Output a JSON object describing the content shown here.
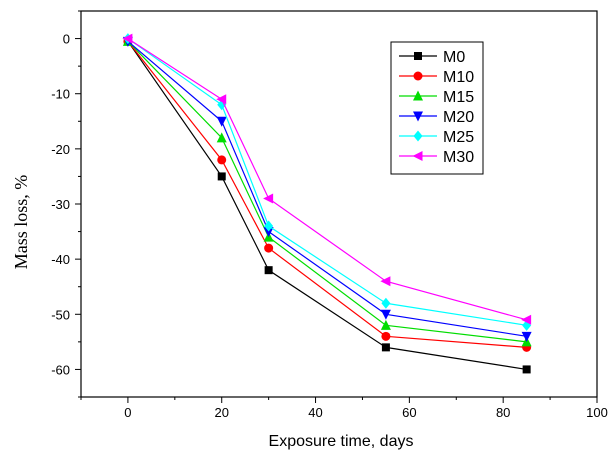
{
  "chart_data": {
    "type": "line",
    "title": "",
    "xlabel": "Exposure time, days",
    "ylabel": "Mass loss, %",
    "xlim": [
      -10,
      100
    ],
    "ylim": [
      -65,
      5
    ],
    "xticks": [
      0,
      20,
      40,
      60,
      80,
      100
    ],
    "yticks": [
      0,
      -10,
      -20,
      -30,
      -40,
      -50,
      -60
    ],
    "grid": false,
    "legend_position": "top-right",
    "x": [
      0,
      20,
      30,
      55,
      85
    ],
    "series": [
      {
        "name": "M0",
        "color": "#000000",
        "marker": "square",
        "values": [
          -0.5,
          -25,
          -42,
          -56,
          -60
        ]
      },
      {
        "name": "M10",
        "color": "#ff0000",
        "marker": "circle",
        "values": [
          -0.5,
          -22,
          -38,
          -54,
          -56
        ]
      },
      {
        "name": "M15",
        "color": "#00dd00",
        "marker": "triangle-up",
        "values": [
          -0.5,
          -18,
          -36,
          -52,
          -55
        ]
      },
      {
        "name": "M20",
        "color": "#0000ff",
        "marker": "triangle-down",
        "values": [
          -0.5,
          -15,
          -35,
          -50,
          -54
        ]
      },
      {
        "name": "M25",
        "color": "#00ffff",
        "marker": "diamond",
        "values": [
          0,
          -12,
          -34,
          -48,
          -52
        ]
      },
      {
        "name": "M30",
        "color": "#ff00ff",
        "marker": "triangle-left",
        "values": [
          0,
          -11,
          -29,
          -44,
          -51
        ]
      }
    ]
  }
}
